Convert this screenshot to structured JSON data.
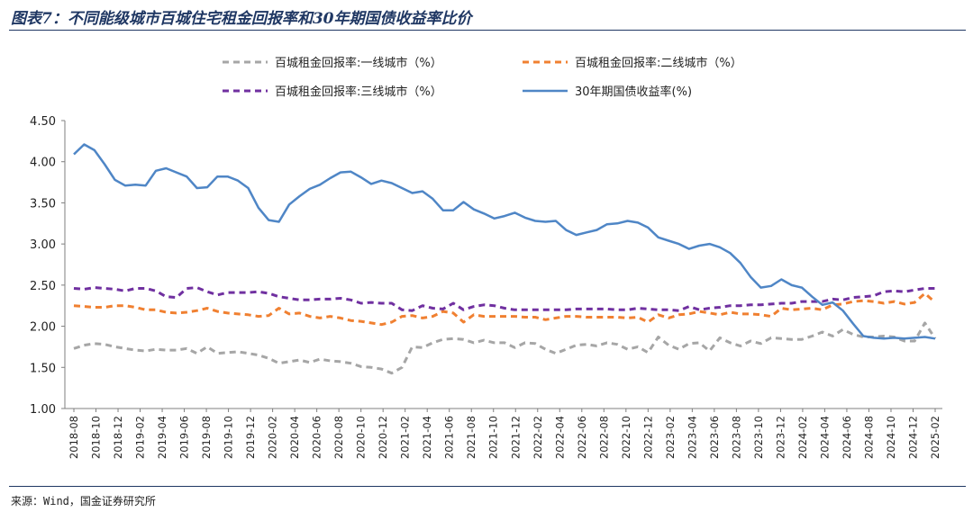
{
  "chart_data": {
    "type": "line",
    "title": "图表7：不同能级城市百城住宅租金回报率和30年期国债收益率比价",
    "source": "来源：Wind，国金证券研究所",
    "ylim": [
      1.0,
      4.5
    ],
    "yticks": [
      "4.50",
      "4.00",
      "3.50",
      "3.00",
      "2.50",
      "2.00",
      "1.50",
      "1.00"
    ],
    "ytick_values": [
      4.5,
      4.0,
      3.5,
      3.0,
      2.5,
      2.0,
      1.5,
      1.0
    ],
    "xtick_labels": [
      "2018-08",
      "2018-10",
      "2018-12",
      "2019-02",
      "2019-04",
      "2019-06",
      "2019-08",
      "2019-10",
      "2019-12",
      "2020-02",
      "2020-04",
      "2020-06",
      "2020-08",
      "2020-10",
      "2020-12",
      "2021-02",
      "2021-04",
      "2021-06",
      "2021-08",
      "2021-10",
      "2021-12",
      "2022-02",
      "2022-04",
      "2022-06",
      "2022-08",
      "2022-10",
      "2022-12",
      "2023-02",
      "2023-04",
      "2023-06",
      "2023-08",
      "2023-10",
      "2023-12",
      "2024-02",
      "2024-04",
      "2024-06",
      "2024-08",
      "2024-10",
      "2024-12",
      "2025-02"
    ],
    "grid": false,
    "legend_position": "top",
    "series": [
      {
        "name": "百城租金回报率:一线城市（%）",
        "color": "#a6a6a6",
        "style": "dashed",
        "values": [
          1.73,
          1.77,
          1.79,
          1.78,
          1.75,
          1.73,
          1.71,
          1.7,
          1.72,
          1.71,
          1.71,
          1.73,
          1.67,
          1.75,
          1.67,
          1.68,
          1.69,
          1.67,
          1.65,
          1.61,
          1.55,
          1.57,
          1.59,
          1.56,
          1.6,
          1.58,
          1.57,
          1.55,
          1.51,
          1.5,
          1.48,
          1.43,
          1.5,
          1.75,
          1.74,
          1.8,
          1.84,
          1.85,
          1.84,
          1.8,
          1.83,
          1.8,
          1.8,
          1.74,
          1.8,
          1.79,
          1.72,
          1.67,
          1.72,
          1.77,
          1.78,
          1.76,
          1.8,
          1.78,
          1.72,
          1.75,
          1.68,
          1.87,
          1.77,
          1.72,
          1.79,
          1.8,
          1.7,
          1.86,
          1.8,
          1.76,
          1.82,
          1.79,
          1.86,
          1.85,
          1.84,
          1.84,
          1.88,
          1.93,
          1.88,
          1.96,
          1.9,
          1.87,
          1.87,
          1.88,
          1.87,
          1.82,
          1.82,
          2.04,
          1.85
        ]
      },
      {
        "name": "百城租金回报率:二线城市（%）",
        "color": "#f08031",
        "style": "dashed",
        "values": [
          2.25,
          2.24,
          2.23,
          2.23,
          2.25,
          2.25,
          2.23,
          2.2,
          2.2,
          2.17,
          2.16,
          2.17,
          2.19,
          2.22,
          2.18,
          2.16,
          2.15,
          2.14,
          2.12,
          2.13,
          2.22,
          2.15,
          2.16,
          2.12,
          2.1,
          2.12,
          2.1,
          2.07,
          2.06,
          2.04,
          2.02,
          2.05,
          2.12,
          2.13,
          2.1,
          2.12,
          2.18,
          2.16,
          2.05,
          2.14,
          2.12,
          2.12,
          2.12,
          2.12,
          2.11,
          2.11,
          2.08,
          2.1,
          2.12,
          2.12,
          2.11,
          2.11,
          2.11,
          2.11,
          2.1,
          2.11,
          2.05,
          2.14,
          2.1,
          2.14,
          2.15,
          2.18,
          2.16,
          2.14,
          2.17,
          2.15,
          2.15,
          2.14,
          2.12,
          2.22,
          2.2,
          2.21,
          2.22,
          2.2,
          2.26,
          2.27,
          2.3,
          2.31,
          2.3,
          2.28,
          2.3,
          2.27,
          2.29,
          2.4,
          2.29
        ]
      },
      {
        "name": "百城租金回报率:三线城市（%）",
        "color": "#7030a0",
        "style": "dashed",
        "values": [
          2.46,
          2.45,
          2.47,
          2.46,
          2.45,
          2.43,
          2.46,
          2.46,
          2.43,
          2.36,
          2.35,
          2.46,
          2.47,
          2.42,
          2.38,
          2.41,
          2.41,
          2.41,
          2.42,
          2.4,
          2.36,
          2.34,
          2.32,
          2.32,
          2.33,
          2.33,
          2.34,
          2.32,
          2.28,
          2.29,
          2.28,
          2.28,
          2.2,
          2.19,
          2.25,
          2.22,
          2.21,
          2.28,
          2.2,
          2.24,
          2.26,
          2.25,
          2.22,
          2.2,
          2.2,
          2.2,
          2.2,
          2.2,
          2.2,
          2.21,
          2.21,
          2.21,
          2.21,
          2.2,
          2.2,
          2.22,
          2.21,
          2.2,
          2.2,
          2.19,
          2.24,
          2.2,
          2.22,
          2.23,
          2.25,
          2.25,
          2.26,
          2.26,
          2.27,
          2.28,
          2.28,
          2.3,
          2.3,
          2.3,
          2.33,
          2.32,
          2.35,
          2.36,
          2.37,
          2.42,
          2.43,
          2.42,
          2.44,
          2.46,
          2.46
        ]
      },
      {
        "name": "30年期国债收益率(%)",
        "color": "#4f86c6",
        "style": "solid",
        "values": [
          4.09,
          4.21,
          4.14,
          3.97,
          3.78,
          3.71,
          3.72,
          3.71,
          3.89,
          3.92,
          3.87,
          3.82,
          3.68,
          3.69,
          3.82,
          3.82,
          3.77,
          3.68,
          3.44,
          3.29,
          3.27,
          3.48,
          3.58,
          3.67,
          3.72,
          3.8,
          3.87,
          3.88,
          3.81,
          3.73,
          3.77,
          3.74,
          3.68,
          3.62,
          3.64,
          3.55,
          3.41,
          3.41,
          3.51,
          3.42,
          3.37,
          3.31,
          3.34,
          3.38,
          3.32,
          3.28,
          3.27,
          3.28,
          3.17,
          3.11,
          3.14,
          3.17,
          3.24,
          3.25,
          3.28,
          3.26,
          3.2,
          3.08,
          3.04,
          3.0,
          2.94,
          2.98,
          3.0,
          2.96,
          2.89,
          2.77,
          2.6,
          2.47,
          2.49,
          2.57,
          2.5,
          2.47,
          2.36,
          2.26,
          2.29,
          2.19,
          2.03,
          1.88,
          1.86,
          1.85,
          1.86,
          1.85,
          1.86,
          1.87,
          1.85
        ]
      }
    ]
  }
}
